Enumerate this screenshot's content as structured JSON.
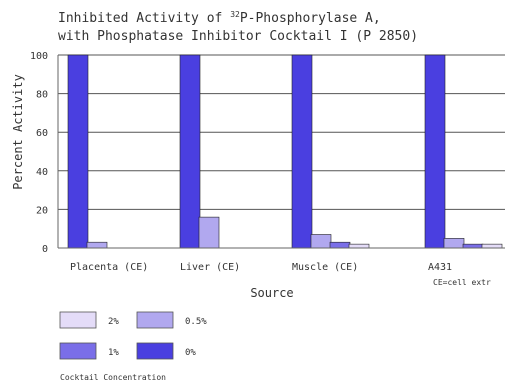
{
  "chart_data": {
    "type": "bar",
    "title_line1": "Inhibited Activity of 32P-Phosphorylase A,",
    "title_line2": "with Phosphatase Inhibitor Cocktail I (P 2850)",
    "title_superscript": "32",
    "xlabel": "Source",
    "ylabel": "Percent Activity",
    "ylim": [
      0,
      100
    ],
    "yticks": [
      "0",
      "20",
      "40",
      "60",
      "80",
      "100"
    ],
    "grid": true,
    "categories": [
      "Placenta (CE)",
      "Liver (CE)",
      "Muscle (CE)",
      "A431"
    ],
    "footnote": "CE=cell extr",
    "series": [
      {
        "name": "0%",
        "color": "#4a3fe0",
        "values": [
          100,
          100,
          100,
          100
        ]
      },
      {
        "name": "1%",
        "color": "#7a6ee8",
        "values": [
          null,
          null,
          3,
          2
        ]
      },
      {
        "name": "0.5%",
        "color": "#b1a8ef",
        "values": [
          3,
          16,
          7,
          5
        ]
      },
      {
        "name": "2%",
        "color": "#e4dcf8",
        "values": [
          null,
          null,
          2,
          2
        ]
      }
    ],
    "bar_order": [
      "0%",
      "0.5%",
      "1%",
      "2%"
    ],
    "legend_order": [
      "2%",
      "0.5%",
      "1%",
      "0%"
    ],
    "legend_title": "Cocktail Concentration",
    "legend_placement": "bottom-left"
  }
}
